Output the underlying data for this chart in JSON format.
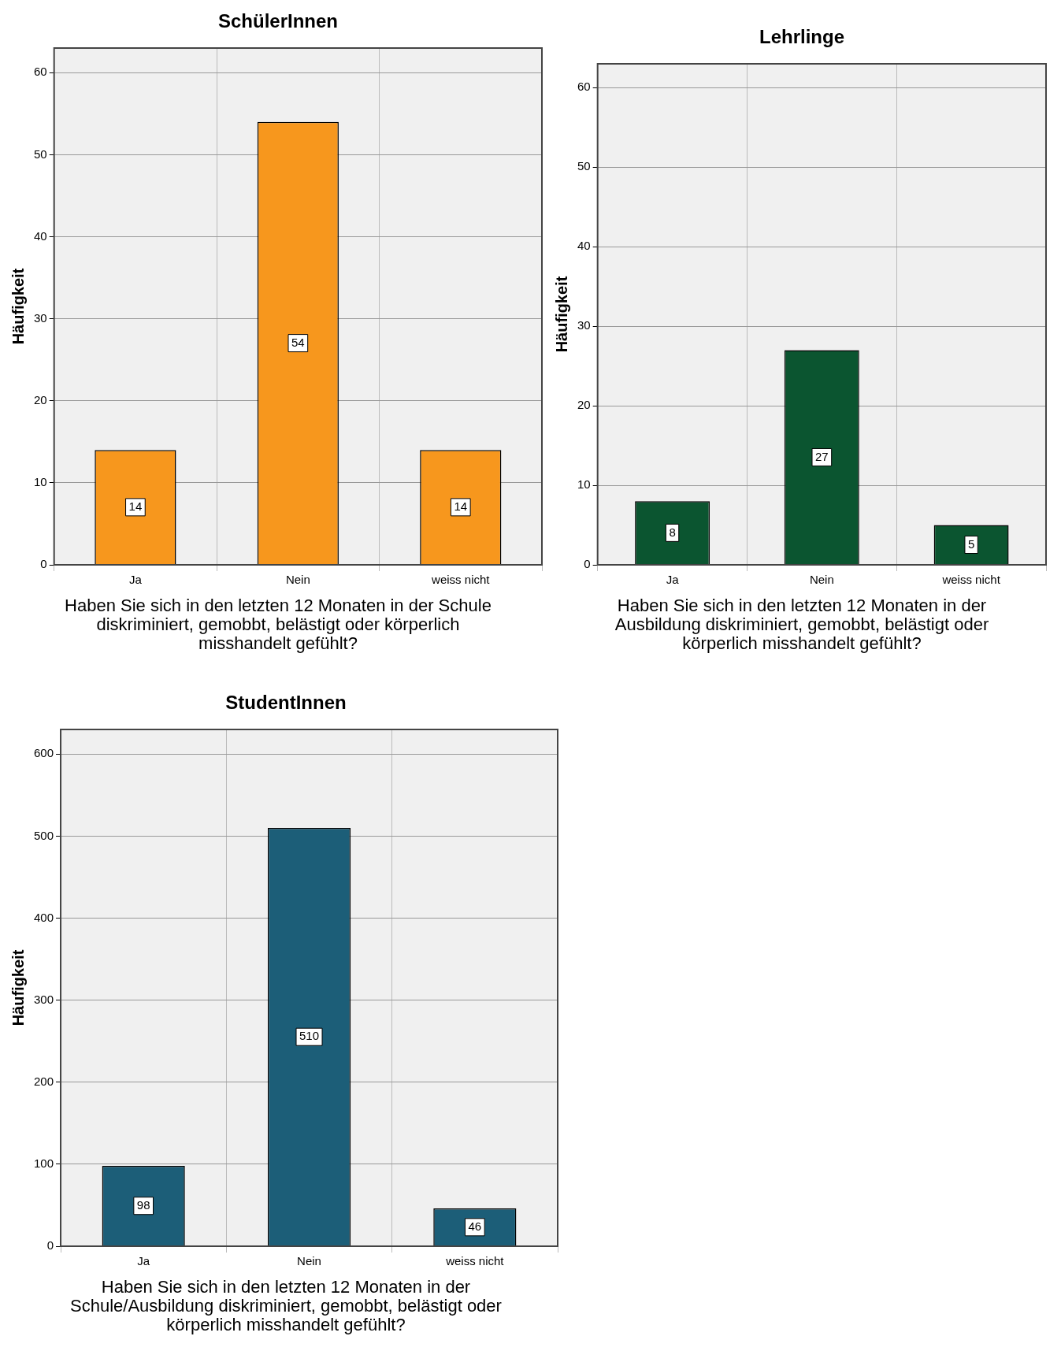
{
  "chart_data": [
    {
      "type": "bar",
      "title": "SchülerInnen",
      "categories": [
        "Ja",
        "Nein",
        "weiss nicht"
      ],
      "values": [
        14,
        54,
        14
      ],
      "color": "#f7971d",
      "ylim": [
        0,
        63
      ],
      "yticks": [
        0,
        10,
        20,
        30,
        40,
        50,
        60
      ],
      "ylabel": "Häufigkeit",
      "xlabel": "Haben Sie sich in den letzten 12 Monaten in der Schule diskriminiert, gemobbt, belästigt oder körperlich misshandelt gefühlt?",
      "grid": true,
      "data_labels": true
    },
    {
      "type": "bar",
      "title": "Lehrlinge",
      "categories": [
        "Ja",
        "Nein",
        "weiss nicht"
      ],
      "values": [
        8,
        27,
        5
      ],
      "color": "#0b5530",
      "ylim": [
        0,
        63
      ],
      "yticks": [
        0,
        10,
        20,
        30,
        40,
        50,
        60
      ],
      "ylabel": "Häufigkeit",
      "xlabel": "Haben Sie sich in den letzten 12 Monaten in der Ausbildung diskriminiert, gemobbt, belästigt oder körperlich misshandelt gefühlt?",
      "grid": true,
      "data_labels": true
    },
    {
      "type": "bar",
      "title": "StudentInnen",
      "categories": [
        "Ja",
        "Nein",
        "weiss nicht"
      ],
      "values": [
        98,
        510,
        46
      ],
      "color": "#1c5e78",
      "ylim": [
        0,
        630
      ],
      "yticks": [
        0,
        100,
        200,
        300,
        400,
        500,
        600
      ],
      "ylabel": "Häufigkeit",
      "xlabel": "Haben Sie sich in den letzten 12 Monaten in der Schule/Ausbildung diskriminiert, gemobbt, belästigt oder körperlich misshandelt gefühlt?",
      "grid": true,
      "data_labels": true
    }
  ]
}
